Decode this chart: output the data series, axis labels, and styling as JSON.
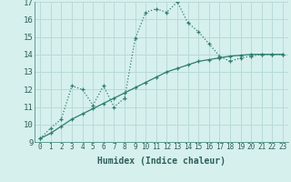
{
  "xlabel": "Humidex (Indice chaleur)",
  "line1_x": [
    0,
    1,
    2,
    3,
    4,
    5,
    6,
    7,
    8,
    9,
    10,
    11,
    12,
    13,
    14,
    15,
    16,
    17,
    18,
    19,
    20,
    21,
    22,
    23
  ],
  "line1_y": [
    9.2,
    9.8,
    10.3,
    12.2,
    12.0,
    11.1,
    12.2,
    11.0,
    11.5,
    14.9,
    16.4,
    16.6,
    16.4,
    17.0,
    15.8,
    15.3,
    14.6,
    13.9,
    13.6,
    13.8,
    13.9,
    14.0,
    14.0,
    14.0
  ],
  "line2_x": [
    0,
    1,
    2,
    3,
    4,
    5,
    6,
    7,
    8,
    9,
    10,
    11,
    12,
    13,
    14,
    15,
    16,
    17,
    18,
    19,
    20,
    21,
    22,
    23
  ],
  "line2_y": [
    9.2,
    9.5,
    9.9,
    10.3,
    10.6,
    10.9,
    11.2,
    11.5,
    11.8,
    12.1,
    12.4,
    12.7,
    13.0,
    13.2,
    13.4,
    13.6,
    13.7,
    13.8,
    13.9,
    13.95,
    14.0,
    14.0,
    14.0,
    14.0
  ],
  "line_color": "#2e7d6e",
  "bg_color": "#d6f0ee",
  "grid_color": "#b8dbd8",
  "ylim": [
    9,
    17
  ],
  "xlim": [
    -0.5,
    23.5
  ],
  "yticks": [
    9,
    10,
    11,
    12,
    13,
    14,
    15,
    16,
    17
  ],
  "xticks": [
    0,
    1,
    2,
    3,
    4,
    5,
    6,
    7,
    8,
    9,
    10,
    11,
    12,
    13,
    14,
    15,
    16,
    17,
    18,
    19,
    20,
    21,
    22,
    23
  ],
  "xlabel_fontsize": 7,
  "tick_fontsize": 5.5,
  "ytick_fontsize": 6.5
}
